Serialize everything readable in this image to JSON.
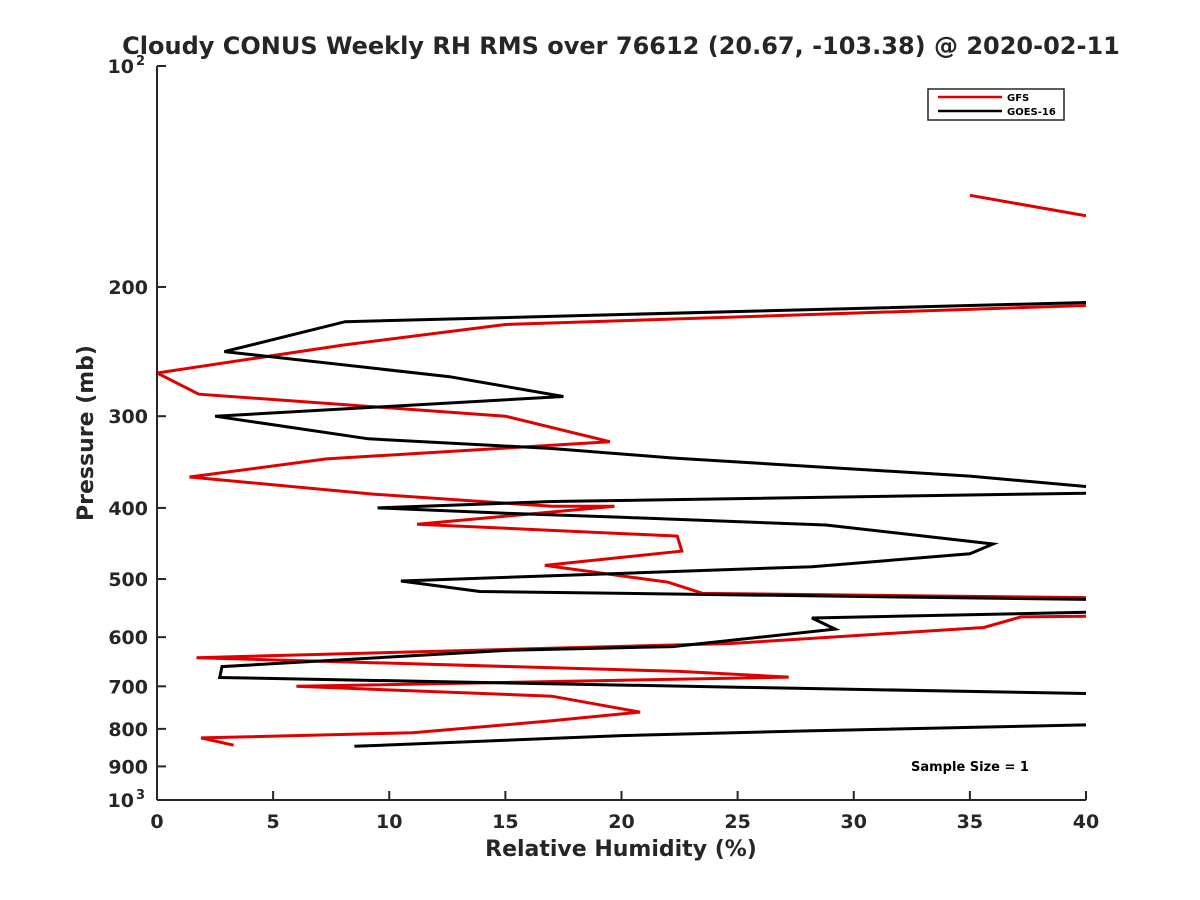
{
  "chart_data": {
    "type": "line",
    "title": "Cloudy CONUS Weekly RH RMS over 76612 (20.67, -103.38) @ 2020-02-11",
    "xlabel": "Relative Humidity (%)",
    "ylabel": "Pressure (mb)",
    "xlim": [
      0,
      40
    ],
    "ylim": [
      100,
      1000
    ],
    "yscale": "log",
    "y_reversed": true,
    "x_ticks": [
      0,
      5,
      10,
      15,
      20,
      25,
      30,
      35,
      40
    ],
    "x_tick_labels": [
      "0",
      "5",
      "10",
      "15",
      "20",
      "25",
      "30",
      "35",
      "40"
    ],
    "y_ticks": [
      200,
      300,
      400,
      500,
      600,
      700,
      800,
      900
    ],
    "y_tick_labels": [
      "200",
      "300",
      "400",
      "500",
      "600",
      "700",
      "800",
      "900"
    ],
    "y_decade_ticks": [
      {
        "value": 100,
        "base": "10",
        "exp": "2"
      },
      {
        "value": 1000,
        "base": "10",
        "exp": "3"
      }
    ],
    "grid": false,
    "legend_position": "top-right",
    "annotation": "Sample Size = 1",
    "series": [
      {
        "name": "GFS",
        "color": "#e00000",
        "points": [
          [
            35,
            150
          ],
          [
            40,
            160
          ],
          null,
          [
            40,
            212
          ],
          [
            15,
            225
          ],
          [
            8,
            240
          ],
          [
            0,
            262
          ],
          [
            1.8,
            280
          ],
          [
            15,
            300
          ],
          [
            19.5,
            325
          ],
          [
            7.3,
            343
          ],
          [
            1.4,
            363
          ],
          [
            9.3,
            383
          ],
          [
            17,
            398
          ],
          [
            19.7,
            398
          ],
          [
            11.2,
            421
          ],
          [
            22.4,
            437
          ],
          [
            22.6,
            458
          ],
          [
            16.7,
            479
          ],
          [
            22,
            505
          ],
          [
            23.5,
            523
          ],
          [
            40,
            530
          ],
          null,
          [
            40,
            562
          ],
          [
            37.2,
            563
          ],
          [
            35.6,
            582
          ],
          [
            24.7,
            612
          ],
          [
            1.7,
            640
          ],
          [
            22.5,
            668
          ],
          [
            27.2,
            680
          ],
          [
            6,
            700
          ],
          [
            17,
            722
          ],
          [
            20.8,
            759
          ],
          [
            17,
            780
          ],
          [
            11,
            810
          ],
          [
            1.9,
            823
          ],
          [
            3.3,
            842
          ]
        ]
      },
      {
        "name": "GOES-16",
        "color": "#000000",
        "points": [
          [
            40,
            210
          ],
          [
            8.1,
            223
          ],
          [
            2.9,
            245
          ],
          [
            12.6,
            265
          ],
          [
            17.5,
            282
          ],
          [
            2.5,
            300
          ],
          [
            9.1,
            322
          ],
          [
            17,
            332
          ],
          [
            22.2,
            342
          ],
          [
            35,
            362
          ],
          [
            40,
            374
          ],
          null,
          [
            40,
            382
          ],
          [
            17,
            392
          ],
          [
            9.5,
            400
          ],
          [
            15.2,
            407
          ],
          [
            20,
            412
          ],
          [
            28.8,
            422
          ],
          [
            36,
            448
          ],
          [
            35,
            462
          ],
          [
            28.2,
            481
          ],
          [
            10.5,
            503
          ],
          [
            13.9,
            520
          ],
          [
            40,
            533
          ],
          null,
          [
            40,
            555
          ],
          [
            28.2,
            565
          ],
          [
            29.2,
            585
          ],
          [
            22.2,
            618
          ],
          [
            15.2,
            625
          ],
          [
            2.8,
            658
          ],
          [
            2.7,
            681
          ],
          [
            14.3,
            692
          ],
          [
            25,
            702
          ],
          [
            40,
            716
          ],
          null,
          [
            40,
            790
          ],
          [
            28,
            805
          ],
          [
            20,
            817
          ],
          [
            8.5,
            845
          ]
        ]
      }
    ]
  }
}
